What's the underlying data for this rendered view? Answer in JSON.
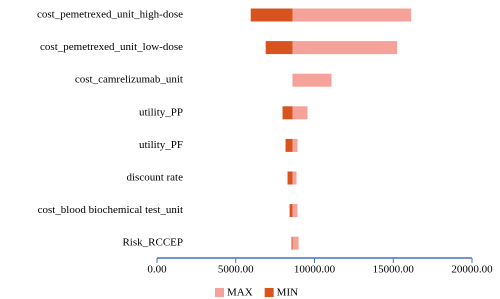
{
  "chart_data": {
    "type": "tornado",
    "categories": [
      "cost_pemetrexed_unit_high-dose",
      "cost_pemetrexed_unit_low-dose",
      "cost_camrelizumab_unit",
      "utility_PP",
      "utility_PF",
      "discount rate",
      "cost_blood biochemical test_unit",
      "Risk_RCCEP"
    ],
    "base": 8600,
    "series": [
      {
        "name": "MAX",
        "color": "#f4a29a",
        "values": [
          16140,
          15250,
          11080,
          9560,
          8920,
          8860,
          8920,
          8990
        ]
      },
      {
        "name": "MIN",
        "color": "#d9531e",
        "values": [
          5950,
          6900,
          8600,
          7970,
          8160,
          8290,
          8420,
          8540
        ]
      }
    ],
    "xlim": [
      0,
      20000
    ],
    "xticks": [
      {
        "value": 0,
        "label": "0.00"
      },
      {
        "value": 5000,
        "label": "5000.00"
      },
      {
        "value": 10000,
        "label": "10000.00"
      },
      {
        "value": 15000,
        "label": "15000.00"
      },
      {
        "value": 20000,
        "label": "20000.00"
      }
    ],
    "axis_color": "#4472c4",
    "legend": "bottom"
  }
}
